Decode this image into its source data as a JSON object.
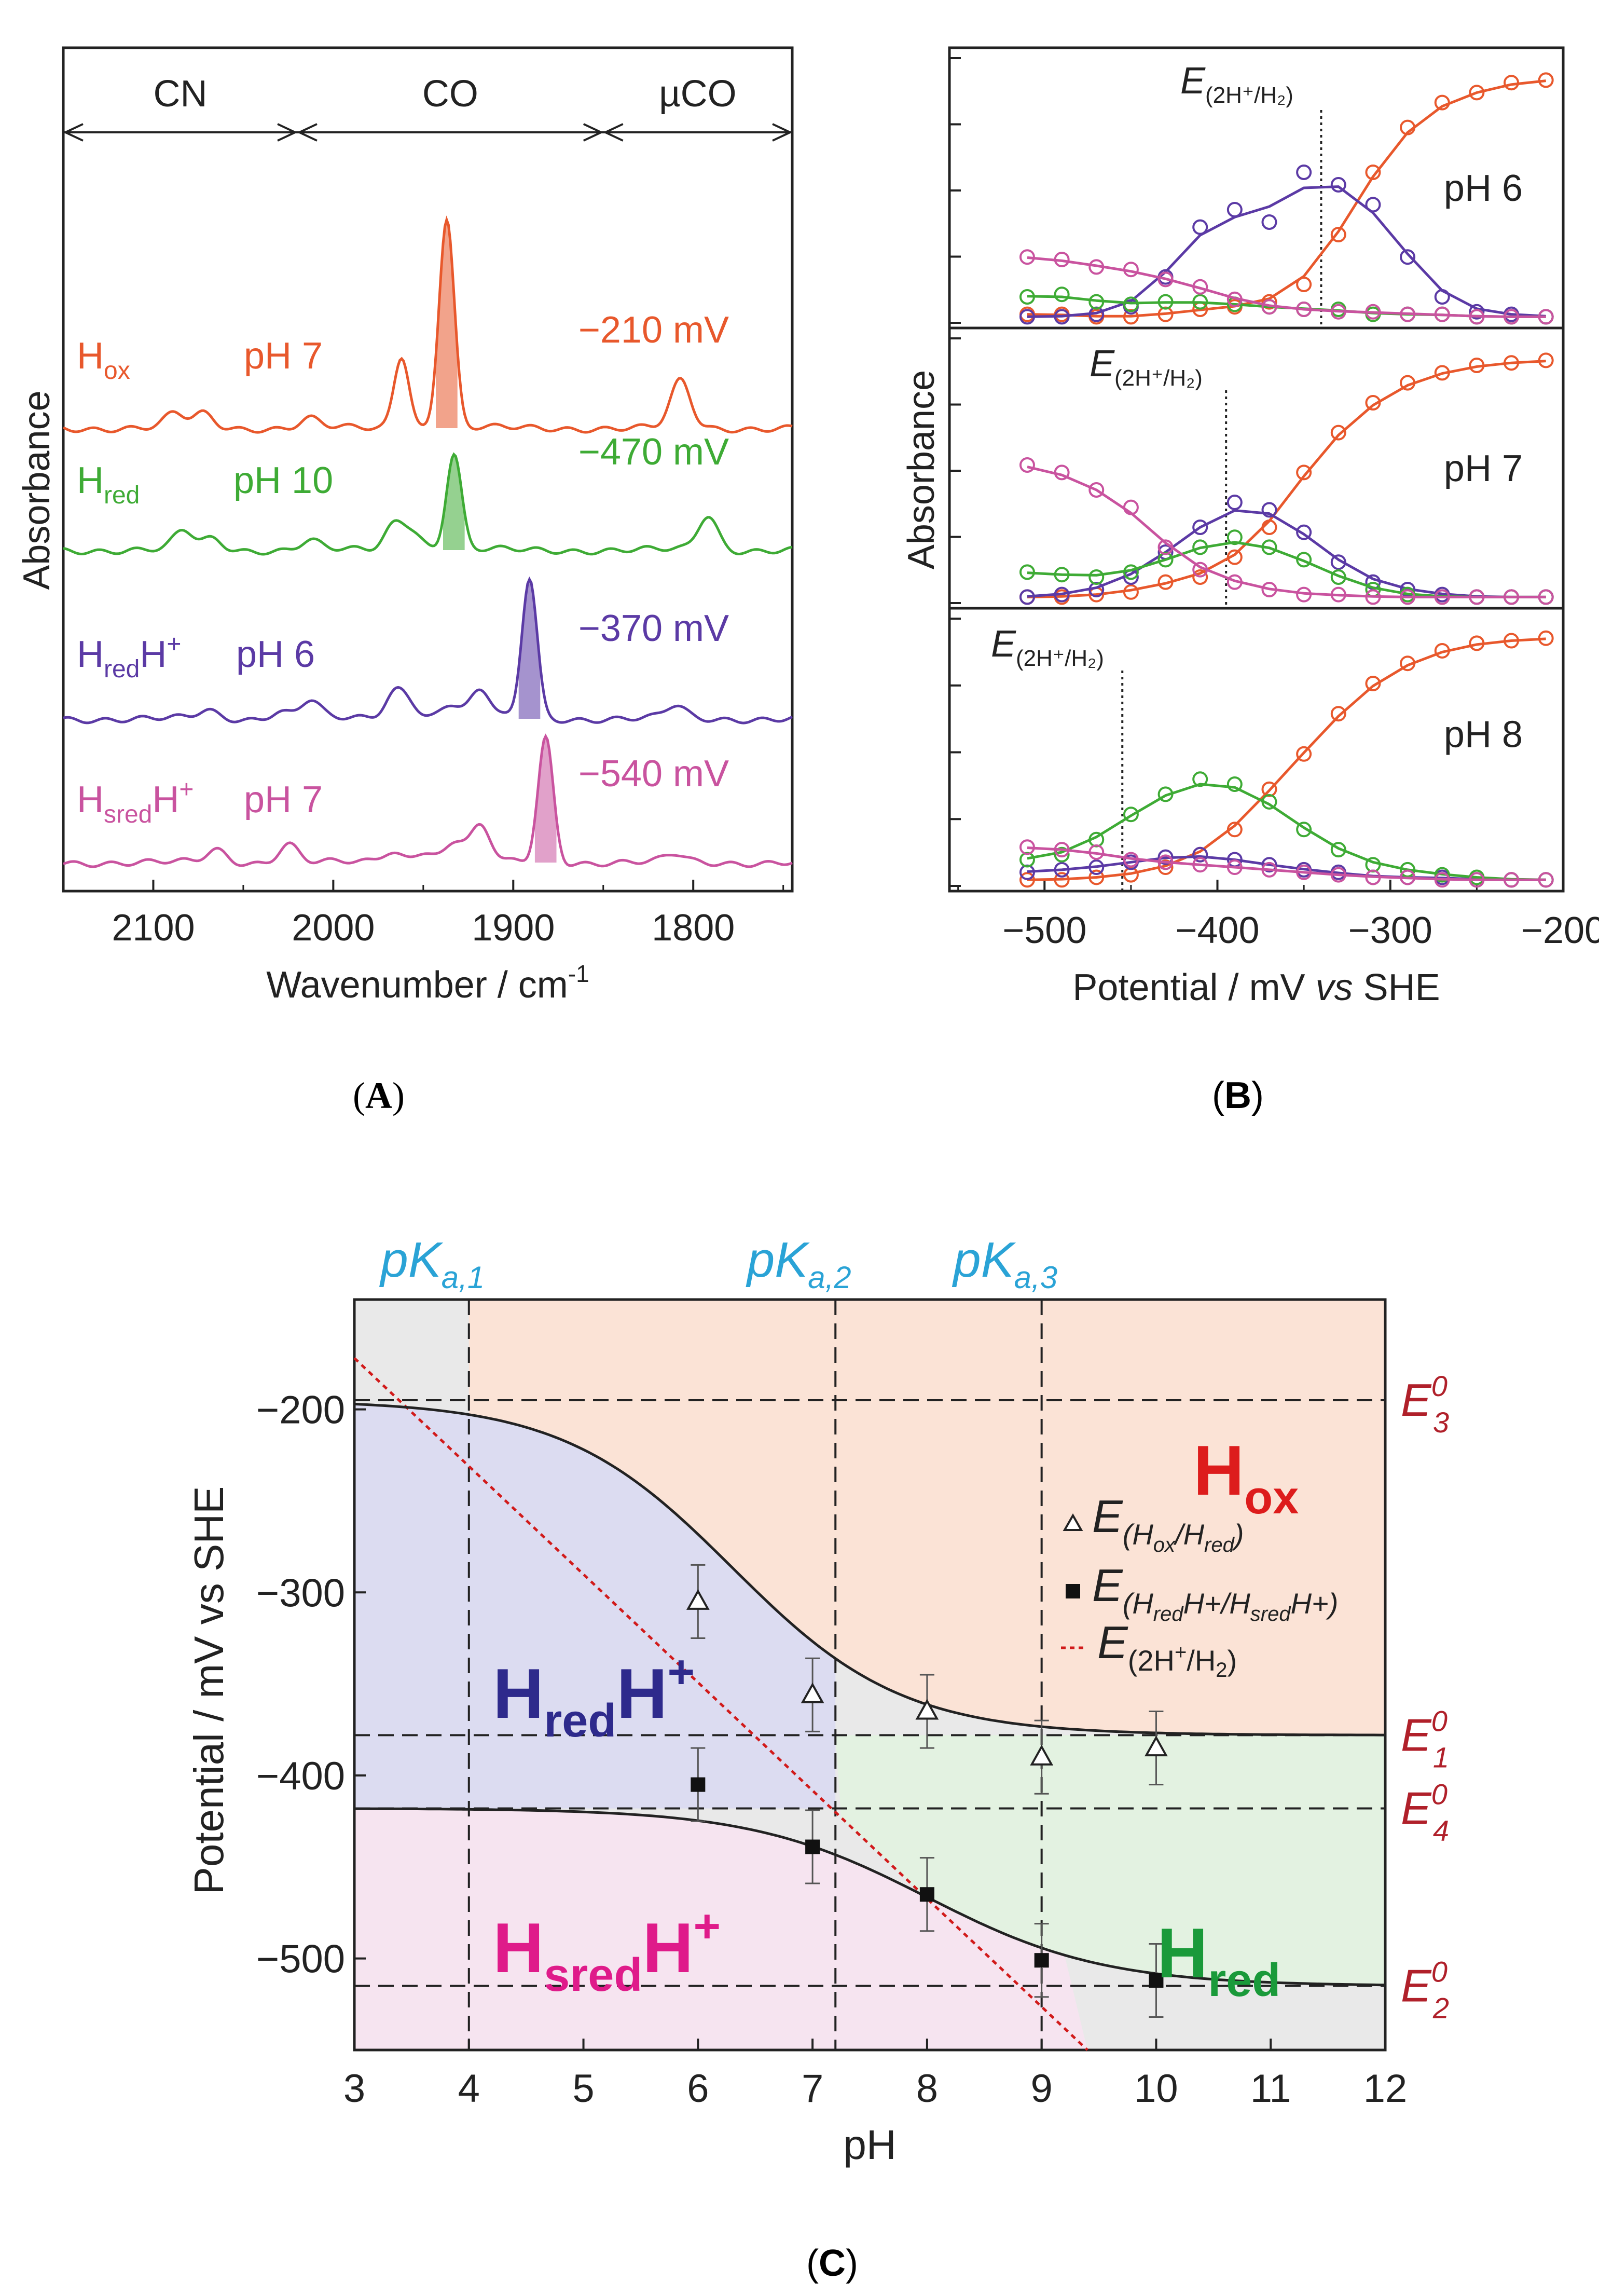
{
  "chart_data": [
    {
      "type": "line",
      "panel_label": "A",
      "xlabel": "Wavenumber / cm",
      "xlabel_sup": "-1",
      "ylabel": "Absorbance",
      "xlim": [
        2150,
        1745
      ],
      "xticks": [
        2100,
        2000,
        1900,
        1800
      ],
      "regions": [
        {
          "label": "CN",
          "from": 2150,
          "to": 2020
        },
        {
          "label": "CO",
          "from": 2020,
          "to": 1850
        },
        {
          "label": "µCO",
          "from": 1850,
          "to": 1745
        }
      ],
      "series": [
        {
          "key": "hox",
          "name_main": "H",
          "name_sub": "ox",
          "name_tail": "",
          "name_tail_sup": "",
          "ph": "pH 7",
          "potential": "−210 mV",
          "color": "#e8582c",
          "peaks": [
            [
              2088,
              9
            ],
            [
              2072,
              9
            ],
            [
              2013,
              6
            ],
            [
              1962,
              47
            ],
            [
              1937,
              135
            ],
            [
              1807,
              30
            ]
          ]
        },
        {
          "key": "hred",
          "name_main": "H",
          "name_sub": "red",
          "name_tail": "",
          "name_tail_sup": "",
          "ph": "pH 10",
          "potential": "−470 mV",
          "color": "#3eab35",
          "peaks": [
            [
              2083,
              12
            ],
            [
              2067,
              7
            ],
            [
              2013,
              6
            ],
            [
              1966,
              16
            ],
            [
              1956,
              12
            ],
            [
              1933,
              62
            ],
            [
              1792,
              22
            ]
          ]
        },
        {
          "key": "hredhp",
          "name_main": "H",
          "name_sub": "red",
          "name_tail": "H",
          "name_tail_sup": "+",
          "ph": "pH 6",
          "potential": "−370 mV",
          "color": "#5b3aa5",
          "peaks": [
            [
              2070,
              5
            ],
            [
              2030,
              5
            ],
            [
              2013,
              12
            ],
            [
              1966,
              15
            ],
            [
              1958,
              10
            ],
            [
              1935,
              10
            ],
            [
              1918,
              18
            ],
            [
              1891,
              90
            ],
            [
              1810,
              8
            ]
          ]
        },
        {
          "key": "hsredhp",
          "name_main": "H",
          "name_sub": "sred",
          "name_tail": "H",
          "name_tail_sup": "+",
          "ph": "pH 7",
          "potential": "−540 mV",
          "color": "#c9539f",
          "peaks": [
            [
              2065,
              8
            ],
            [
              2025,
              12
            ],
            [
              1968,
              7
            ],
            [
              1950,
              8
            ],
            [
              1932,
              14
            ],
            [
              1918,
              22
            ],
            [
              1882,
              80
            ],
            [
              1810,
              5
            ]
          ]
        }
      ]
    },
    {
      "type": "line",
      "panel_label": "B",
      "xlabel": "Potential / mV vs SHE",
      "xlabel_italic_word": "vs",
      "ylabel": "Absorbance",
      "xlim": [
        -555,
        -200
      ],
      "xticks": [
        -500,
        -400,
        -300,
        -200
      ],
      "subpanels": [
        {
          "ph": "pH 6",
          "e_label": "E",
          "e_sub": "(2H⁺/H₂)",
          "e_value": -340,
          "series": [
            {
              "name": "Hox",
              "color": "#e8582c",
              "x": [
                -510,
                -490,
                -470,
                -450,
                -430,
                -410,
                -390,
                -370,
                -350,
                -330,
                -310,
                -290,
                -270,
                -250,
                -230,
                -210
              ],
              "y": [
                0.03,
                0.03,
                0.02,
                0.02,
                0.03,
                0.05,
                0.06,
                0.08,
                0.15,
                0.35,
                0.6,
                0.78,
                0.88,
                0.92,
                0.96,
                0.97
              ]
            },
            {
              "name": "HredH+",
              "color": "#5b3aa5",
              "x": [
                -510,
                -490,
                -470,
                -450,
                -430,
                -410,
                -390,
                -370,
                -350,
                -330,
                -310,
                -290,
                -270,
                -250,
                -230,
                -210
              ],
              "y": [
                0.02,
                0.02,
                0.03,
                0.06,
                0.18,
                0.38,
                0.45,
                0.4,
                0.6,
                0.55,
                0.47,
                0.26,
                0.1,
                0.04,
                0.03,
                0.02
              ]
            },
            {
              "name": "Hred",
              "color": "#3eab35",
              "x": [
                -510,
                -490,
                -470,
                -450,
                -430,
                -410,
                -390,
                -370,
                -350,
                -330,
                -310,
                -290,
                -270,
                -250,
                -230,
                -210
              ],
              "y": [
                0.1,
                0.11,
                0.08,
                0.07,
                0.08,
                0.08,
                0.07,
                0.06,
                0.05,
                0.05,
                0.03,
                0.03,
                0.03,
                0.02,
                0.02,
                0.02
              ]
            },
            {
              "name": "HsredH+",
              "color": "#c9539f",
              "x": [
                -510,
                -490,
                -470,
                -450,
                -430,
                -410,
                -390,
                -370,
                -350,
                -330,
                -310,
                -290,
                -270,
                -250,
                -230,
                -210
              ],
              "y": [
                0.26,
                0.25,
                0.22,
                0.21,
                0.17,
                0.14,
                0.09,
                0.06,
                0.05,
                0.04,
                0.04,
                0.03,
                0.03,
                0.02,
                0.02,
                0.02
              ]
            }
          ]
        },
        {
          "ph": "pH 7",
          "e_label": "E",
          "e_sub": "(2H⁺/H₂)",
          "e_value": -395,
          "series": [
            {
              "name": "Hox",
              "color": "#e8582c",
              "x": [
                -510,
                -490,
                -470,
                -450,
                -430,
                -410,
                -390,
                -370,
                -350,
                -330,
                -310,
                -290,
                -270,
                -250,
                -230,
                -210
              ],
              "y": [
                0.02,
                0.02,
                0.03,
                0.04,
                0.08,
                0.1,
                0.18,
                0.3,
                0.52,
                0.68,
                0.8,
                0.88,
                0.92,
                0.95,
                0.96,
                0.97
              ]
            },
            {
              "name": "HredH+",
              "color": "#5b3aa5",
              "x": [
                -510,
                -490,
                -470,
                -450,
                -430,
                -410,
                -390,
                -370,
                -350,
                -330,
                -310,
                -290,
                -270,
                -250,
                -230,
                -210
              ],
              "y": [
                0.02,
                0.03,
                0.05,
                0.1,
                0.2,
                0.3,
                0.4,
                0.37,
                0.28,
                0.16,
                0.08,
                0.05,
                0.03,
                0.02,
                0.02,
                0.02
              ]
            },
            {
              "name": "Hred",
              "color": "#3eab35",
              "x": [
                -510,
                -490,
                -470,
                -450,
                -430,
                -410,
                -390,
                -370,
                -350,
                -330,
                -310,
                -290,
                -270,
                -250,
                -230,
                -210
              ],
              "y": [
                0.12,
                0.11,
                0.1,
                0.12,
                0.17,
                0.22,
                0.26,
                0.22,
                0.17,
                0.1,
                0.05,
                0.03,
                0.02,
                0.02,
                0.02,
                0.02
              ]
            },
            {
              "name": "HsredH+",
              "color": "#c9539f",
              "x": [
                -510,
                -490,
                -470,
                -450,
                -430,
                -410,
                -390,
                -370,
                -350,
                -330,
                -310,
                -290,
                -270,
                -250,
                -230,
                -210
              ],
              "y": [
                0.55,
                0.52,
                0.45,
                0.38,
                0.22,
                0.13,
                0.08,
                0.05,
                0.03,
                0.03,
                0.02,
                0.02,
                0.02,
                0.02,
                0.02,
                0.02
              ]
            }
          ]
        },
        {
          "ph": "pH 8",
          "e_label": "E",
          "e_sub": "(2H⁺/H₂)",
          "e_value": -455,
          "series": [
            {
              "name": "Hox",
              "color": "#e8582c",
              "x": [
                -510,
                -490,
                -470,
                -450,
                -430,
                -410,
                -390,
                -370,
                -350,
                -330,
                -310,
                -290,
                -270,
                -250,
                -230,
                -210
              ],
              "y": [
                0.02,
                0.02,
                0.03,
                0.04,
                0.07,
                0.12,
                0.22,
                0.38,
                0.52,
                0.68,
                0.8,
                0.88,
                0.93,
                0.96,
                0.97,
                0.98
              ]
            },
            {
              "name": "HredH+",
              "color": "#5b3aa5",
              "x": [
                -510,
                -490,
                -470,
                -450,
                -430,
                -410,
                -390,
                -370,
                -350,
                -330,
                -310,
                -290,
                -270,
                -250,
                -230,
                -210
              ],
              "y": [
                0.05,
                0.06,
                0.07,
                0.09,
                0.11,
                0.12,
                0.1,
                0.08,
                0.06,
                0.05,
                0.03,
                0.03,
                0.03,
                0.02,
                0.02,
                0.02
              ]
            },
            {
              "name": "Hred",
              "color": "#3eab35",
              "x": [
                -510,
                -490,
                -470,
                -450,
                -430,
                -410,
                -390,
                -370,
                -350,
                -330,
                -310,
                -290,
                -270,
                -250,
                -230,
                -210
              ],
              "y": [
                0.1,
                0.12,
                0.18,
                0.28,
                0.36,
                0.42,
                0.4,
                0.33,
                0.22,
                0.14,
                0.08,
                0.06,
                0.04,
                0.03,
                0.02,
                0.02
              ]
            },
            {
              "name": "HsredH+",
              "color": "#c9539f",
              "x": [
                -510,
                -490,
                -470,
                -450,
                -430,
                -410,
                -390,
                -370,
                -350,
                -330,
                -310,
                -290,
                -270,
                -250,
                -230,
                -210
              ],
              "y": [
                0.15,
                0.14,
                0.13,
                0.1,
                0.09,
                0.08,
                0.07,
                0.06,
                0.05,
                0.04,
                0.03,
                0.03,
                0.02,
                0.02,
                0.02,
                0.02
              ]
            }
          ]
        }
      ]
    },
    {
      "type": "scatter",
      "panel_label": "C",
      "xlabel": "pH",
      "ylabel": "Potential / mV vs SHE",
      "xlim": [
        3,
        12
      ],
      "ylim": [
        -550,
        -140
      ],
      "xticks": [
        3,
        4,
        5,
        6,
        7,
        8,
        9,
        10,
        11,
        12
      ],
      "yticks": [
        -500,
        -400,
        -300,
        -200
      ],
      "pka": [
        {
          "label": "pK",
          "sub": "a,1",
          "value": 4.0
        },
        {
          "label": "pK",
          "sub": "a,2",
          "value": 7.2
        },
        {
          "label": "pK",
          "sub": "a,3",
          "value": 9.0
        }
      ],
      "e0_lines": [
        {
          "label": "E",
          "sup": "0",
          "sub": "3",
          "value": -195
        },
        {
          "label": "E",
          "sup": "0",
          "sub": "1",
          "value": -378
        },
        {
          "label": "E",
          "sup": "0",
          "sub": "4",
          "value": -418
        },
        {
          "label": "E",
          "sup": "0",
          "sub": "2",
          "value": -515
        }
      ],
      "regions": [
        {
          "main": "H",
          "sub": "ox",
          "tail": "",
          "color": "#dd1c1c",
          "fill": "#fbe3d6"
        },
        {
          "main": "H",
          "sub": "red",
          "tail": "H",
          "tail_sup": "+",
          "color": "#2e2a8c",
          "fill": "#dcdcf1"
        },
        {
          "main": "H",
          "sub": "red",
          "tail": "",
          "color": "#1a9a3a",
          "fill": "#e3f2e1"
        },
        {
          "main": "H",
          "sub": "sred",
          "tail": "H",
          "tail_sup": "+",
          "color": "#df1b8a",
          "fill": "#f6e4f0"
        }
      ],
      "series": [
        {
          "name": "E(Hox/Hred)",
          "marker": "open-triangle",
          "x": [
            6,
            7,
            8,
            9,
            10
          ],
          "y": [
            -305,
            -356,
            -365,
            -390,
            -385
          ],
          "yerr": [
            20,
            20,
            20,
            20,
            20
          ]
        },
        {
          "name": "E(HredH+/HsredH+)",
          "marker": "filled-square",
          "x": [
            6,
            7,
            8,
            9,
            10
          ],
          "y": [
            -405,
            -439,
            -465,
            -501,
            -512
          ],
          "yerr": [
            20,
            20,
            20,
            20,
            20
          ]
        },
        {
          "name": "E(2H+/H2)",
          "marker": "dotted-line",
          "color": "#d11a1a",
          "x": [
            3,
            9.4
          ],
          "y": [
            -172,
            -550
          ]
        }
      ],
      "fit_curves": [
        {
          "name": "upper fit",
          "y_low_ph": -195,
          "y_high_ph": -378,
          "center_ph": 6.3
        },
        {
          "name": "lower fit",
          "y_low_ph": -418,
          "y_high_ph": -515,
          "center_ph": 8.0
        }
      ],
      "legend": [
        {
          "symbol": "△",
          "main": "E",
          "sub": "(H",
          "parts": [
            [
              "ox",
              "sub"
            ],
            [
              "/H",
              ""
            ],
            [
              "red",
              "sub"
            ],
            [
              ")",
              ""
            ]
          ]
        },
        {
          "symbol": "■",
          "main": "E",
          "parts": [
            [
              "(H",
              "sub"
            ],
            [
              "red",
              "subsub"
            ],
            [
              "H+/H",
              "sub"
            ],
            [
              "sred",
              "subsub"
            ],
            [
              "H+)",
              "sub"
            ]
          ]
        },
        {
          "symbol": "dotted",
          "main": "E",
          "parts": [
            [
              "(2H",
              "sub"
            ],
            [
              "+",
              "subsup"
            ],
            [
              "/H",
              "sub"
            ],
            [
              "2",
              "subsub"
            ],
            [
              ")",
              "sub"
            ]
          ]
        }
      ]
    }
  ],
  "captions": {
    "a": "(A)",
    "b": "(B)",
    "c": "(C)"
  }
}
